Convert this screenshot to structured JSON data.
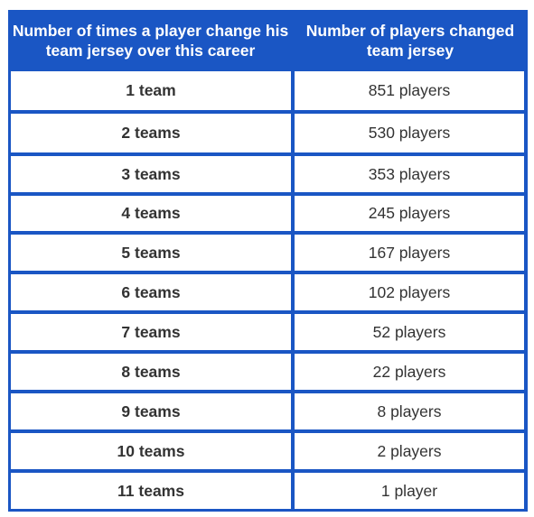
{
  "table": {
    "headers": [
      "Number of times a player change his team jersey over this career",
      "Number of players changed team jersey"
    ],
    "rows": [
      {
        "teams": "1 team",
        "players": "851 players"
      },
      {
        "teams": "2 teams",
        "players": "530 players"
      },
      {
        "teams": "3 teams",
        "players": "353 players"
      },
      {
        "teams": "4 teams",
        "players": "245 players"
      },
      {
        "teams": "5 teams",
        "players": "167 players"
      },
      {
        "teams": "6 teams",
        "players": "102 players"
      },
      {
        "teams": "7 teams",
        "players": "52 players"
      },
      {
        "teams": "8 teams",
        "players": "22 players"
      },
      {
        "teams": "9 teams",
        "players": "8 players"
      },
      {
        "teams": "10 teams",
        "players": "2 players"
      },
      {
        "teams": "11 teams",
        "players": "1 player"
      }
    ]
  },
  "colors": {
    "header_bg": "#1a56c4",
    "header_text": "#ffffff",
    "cell_bg": "#ffffff",
    "cell_text": "#333333"
  }
}
